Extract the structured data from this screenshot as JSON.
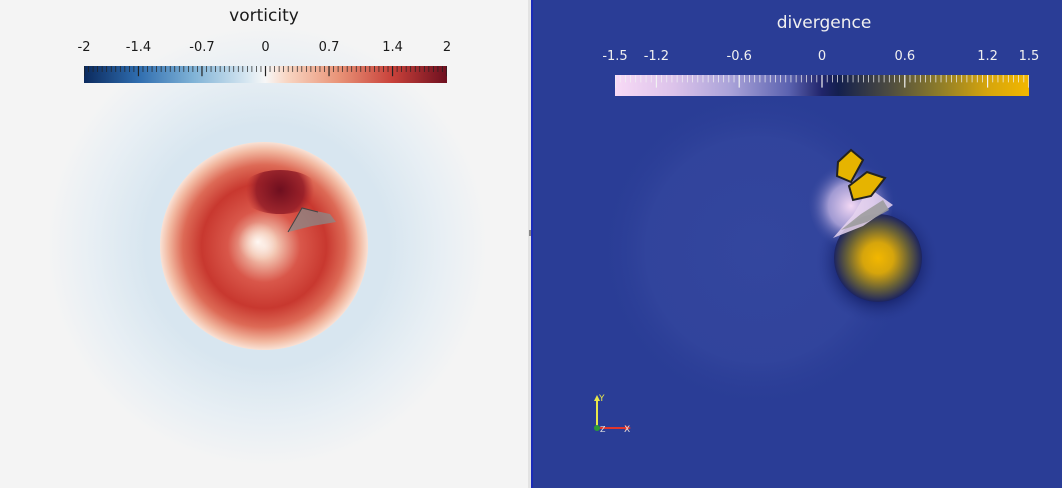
{
  "views": {
    "left": {
      "title": "vorticity",
      "colorbar": {
        "range": [
          -2,
          2
        ],
        "labels": [
          {
            "text": "-2",
            "value": -2
          },
          {
            "text": "-1.4",
            "value": -1.4
          },
          {
            "text": "-0.7",
            "value": -0.7
          },
          {
            "text": "0",
            "value": 0
          },
          {
            "text": "0.7",
            "value": 0.7
          },
          {
            "text": "1.4",
            "value": 1.4
          },
          {
            "text": "2",
            "value": 2
          }
        ],
        "colormap": [
          "#0b2a5e",
          "#7fb2d6",
          "#f7f7f7",
          "#e99478",
          "#6e0f1f"
        ]
      }
    },
    "right": {
      "title": "divergence",
      "colorbar": {
        "range": [
          -1.5,
          1.5
        ],
        "labels": [
          {
            "text": "-1.5",
            "value": -1.5
          },
          {
            "text": "-1.2",
            "value": -1.2
          },
          {
            "text": "-0.6",
            "value": -0.6
          },
          {
            "text": "0",
            "value": 0
          },
          {
            "text": "0.6",
            "value": 0.6
          },
          {
            "text": "1.2",
            "value": 1.2
          },
          {
            "text": "1.5",
            "value": 1.5
          }
        ],
        "colormap": [
          "#f8daf6",
          "#a9a2d8",
          "#20246a",
          "#8c7b2a",
          "#f2b700"
        ]
      },
      "axes": {
        "y_label": "Y",
        "x_label": "X",
        "z_label": "Z"
      }
    }
  },
  "colors": {
    "left_background": "#f4f4f4",
    "right_background": "#2a3d96",
    "splitter_border": "#1b2bb8"
  }
}
